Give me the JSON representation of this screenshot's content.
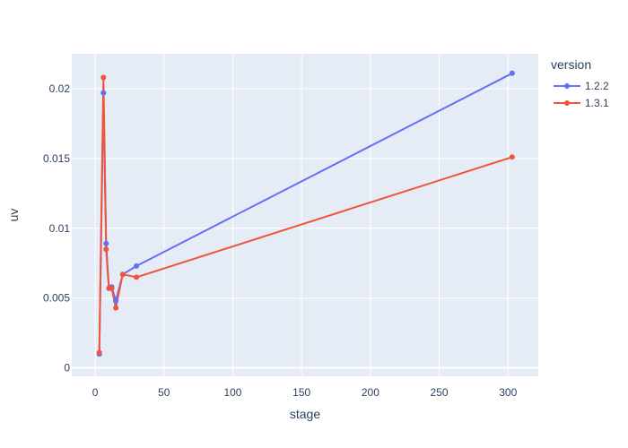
{
  "chart_data": {
    "type": "line",
    "xlabel": "stage",
    "ylabel": "uv",
    "legend_title": "version",
    "legend_position": "top-right",
    "grid": true,
    "xlim": [
      -17,
      322
    ],
    "ylim": [
      -0.0006,
      0.0225
    ],
    "x_ticks": [
      0,
      50,
      100,
      150,
      200,
      250,
      300
    ],
    "y_ticks": [
      0,
      0.005,
      0.01,
      0.015,
      0.02
    ],
    "y_tick_labels": [
      "0",
      "0.005",
      "0.01",
      "0.015",
      "0.02"
    ],
    "colors": {
      "plot_background": "#e5ecf6",
      "grid": "#ffffff",
      "text": "#2a3f5f"
    },
    "series": [
      {
        "name": "1.2.2",
        "color": "#636efa",
        "points": [
          {
            "x": 3,
            "y": 0.001
          },
          {
            "x": 6,
            "y": 0.0197
          },
          {
            "x": 8,
            "y": 0.0089
          },
          {
            "x": 10,
            "y": 0.0057
          },
          {
            "x": 12,
            "y": 0.0058
          },
          {
            "x": 15,
            "y": 0.0048
          },
          {
            "x": 20,
            "y": 0.0067
          },
          {
            "x": 30,
            "y": 0.0073
          },
          {
            "x": 303,
            "y": 0.0211
          }
        ]
      },
      {
        "name": "1.3.1",
        "color": "#ef553b",
        "points": [
          {
            "x": 3,
            "y": 0.0011
          },
          {
            "x": 6,
            "y": 0.0208
          },
          {
            "x": 8,
            "y": 0.0085
          },
          {
            "x": 10,
            "y": 0.0057
          },
          {
            "x": 12,
            "y": 0.0057
          },
          {
            "x": 15,
            "y": 0.0043
          },
          {
            "x": 20,
            "y": 0.0067
          },
          {
            "x": 30,
            "y": 0.0065
          },
          {
            "x": 303,
            "y": 0.0151
          }
        ]
      }
    ]
  }
}
